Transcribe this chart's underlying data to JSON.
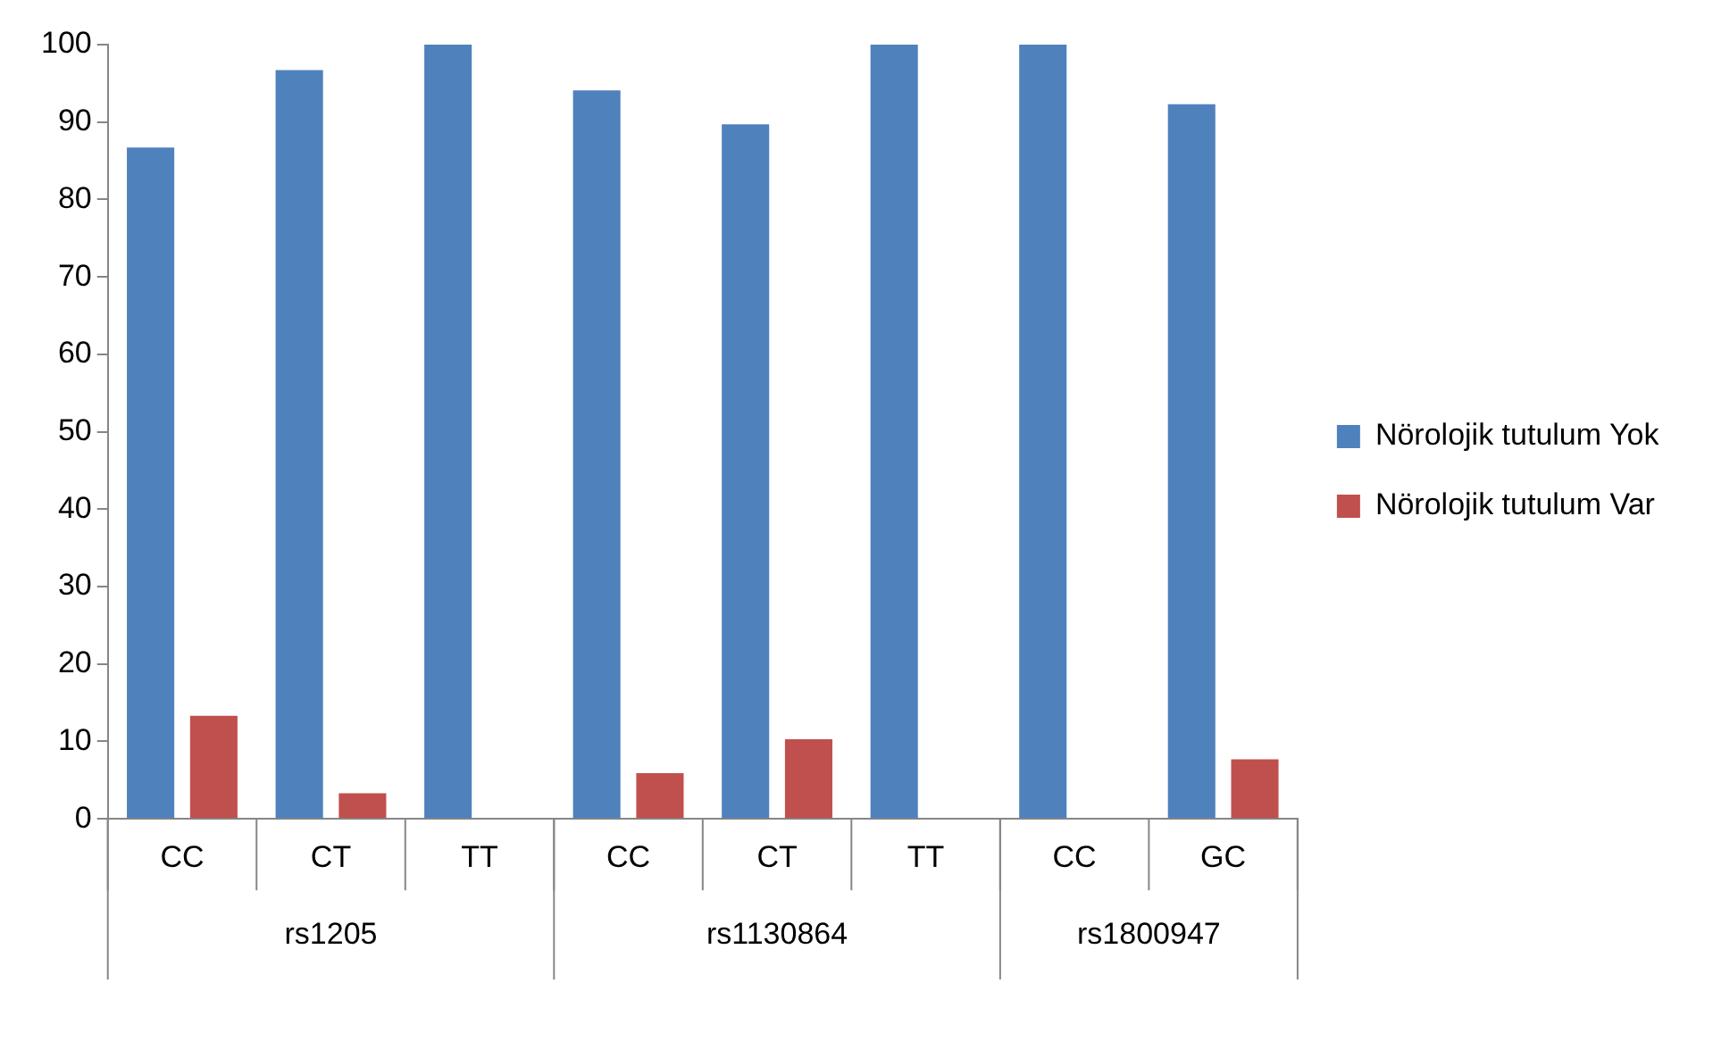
{
  "chart_data": {
    "type": "bar",
    "categories": [
      "CC",
      "CT",
      "TT",
      "CC",
      "CT",
      "TT",
      "CC",
      "GC"
    ],
    "series": [
      {
        "name": "Nörolojik tutulum Yok",
        "color": "#4f81bd",
        "values": [
          86.7,
          96.7,
          100,
          94.1,
          89.7,
          100,
          100,
          92.3
        ]
      },
      {
        "name": "Nörolojik tutulum Var",
        "color": "#c0504d",
        "values": [
          13.3,
          3.3,
          0,
          5.9,
          10.3,
          0,
          0,
          7.7
        ]
      }
    ],
    "annotations": [
      "rs1205",
      "rs1130864",
      "rs1800947"
    ],
    "ylim": [
      0,
      100
    ],
    "yticks": [
      0,
      10,
      20,
      30,
      40,
      50,
      60,
      70,
      80,
      90,
      100
    ],
    "grid": false,
    "legend": "right"
  }
}
